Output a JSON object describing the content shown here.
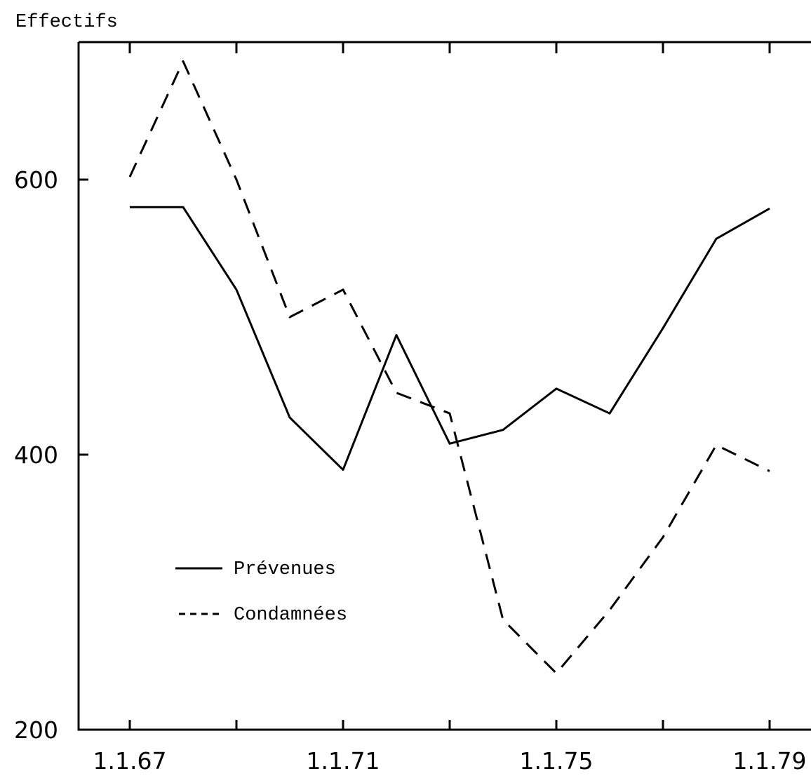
{
  "chart_data": {
    "type": "line",
    "title": "",
    "xlabel": "",
    "ylabel": "Effectifs",
    "x": [
      1967,
      1968,
      1969,
      1970,
      1971,
      1972,
      1973,
      1974,
      1975,
      1976,
      1977,
      1978,
      1979
    ],
    "x_tick_labels": [
      "1.1.67",
      "1.1.71",
      "1.1.75",
      "1.1.79"
    ],
    "y_ticks": [
      200,
      400,
      600
    ],
    "ylim": [
      200,
      700
    ],
    "grid": false,
    "legend_position": "bottom-left",
    "series": [
      {
        "name": "Prévenues",
        "style": "solid",
        "values": [
          580,
          580,
          520,
          427,
          389,
          487,
          408,
          418,
          448,
          430,
          492,
          557,
          579
        ]
      },
      {
        "name": "Condamnées",
        "style": "dashed",
        "values": [
          602,
          686,
          600,
          500,
          520,
          445,
          430,
          280,
          241,
          287,
          340,
          407,
          388
        ]
      }
    ]
  }
}
